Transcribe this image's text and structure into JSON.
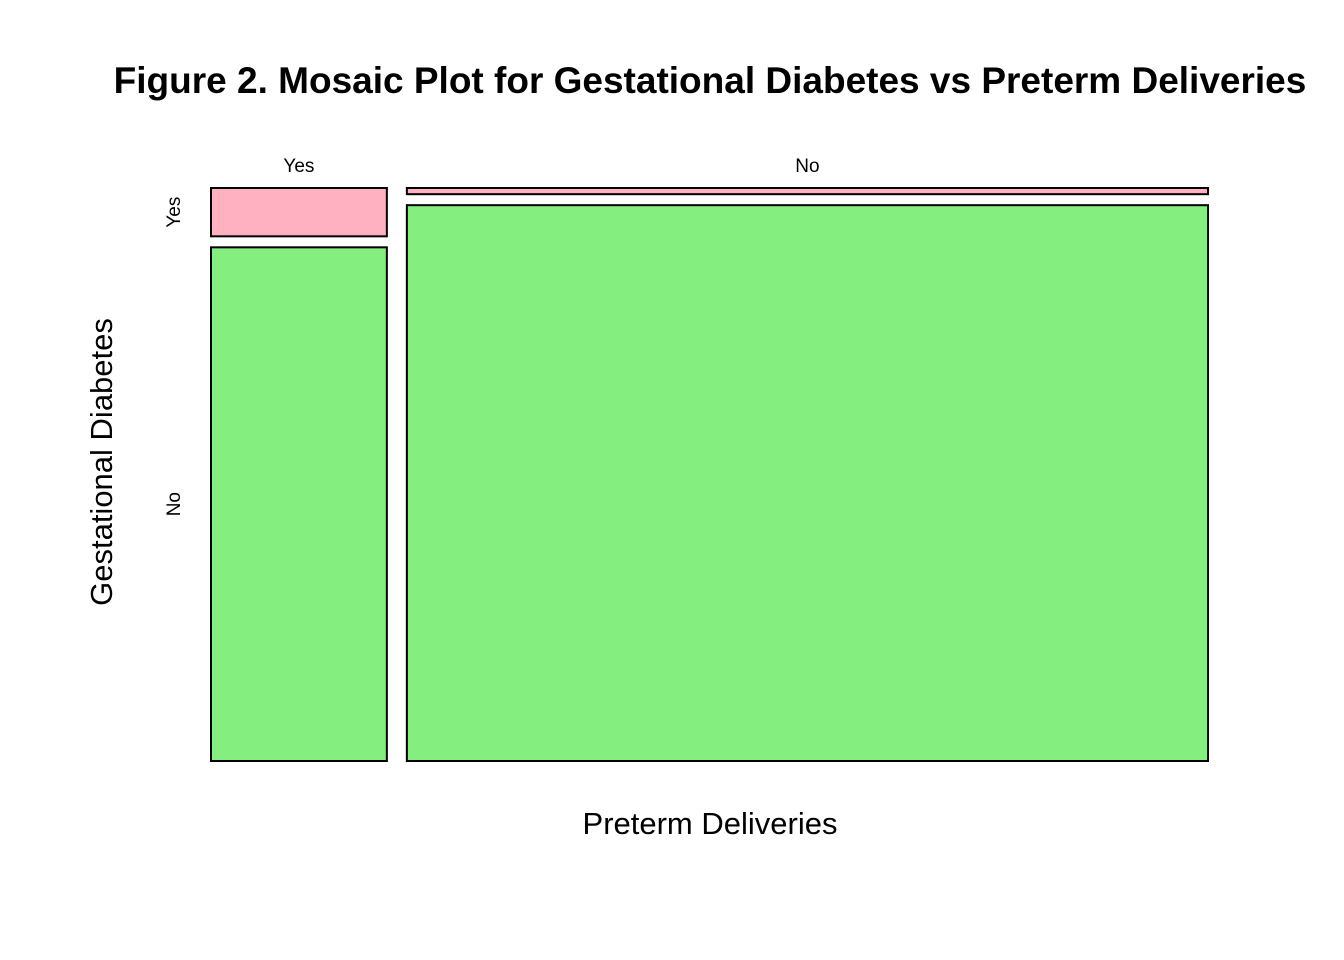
{
  "chart_data": {
    "type": "mosaic",
    "title": "Figure 2. Mosaic Plot for Gestational Diabetes vs Preterm Deliveries",
    "xlabel": "Preterm Deliveries",
    "ylabel": "Gestational Diabetes",
    "x_categories": [
      "Yes",
      "No"
    ],
    "y_categories": [
      "Yes",
      "No"
    ],
    "x_proportions": [
      0.18,
      0.82
    ],
    "cells": [
      {
        "x": "Yes",
        "y": "Yes",
        "conditional_proportion": 0.086,
        "color": "#ffb0c1"
      },
      {
        "x": "Yes",
        "y": "No",
        "conditional_proportion": 0.914,
        "color": "#84ee7f"
      },
      {
        "x": "No",
        "y": "Yes",
        "conditional_proportion": 0.011,
        "color": "#ffb0c1"
      },
      {
        "x": "No",
        "y": "No",
        "conditional_proportion": 0.989,
        "color": "#84ee7f"
      }
    ],
    "legend": "none",
    "grid": false
  }
}
